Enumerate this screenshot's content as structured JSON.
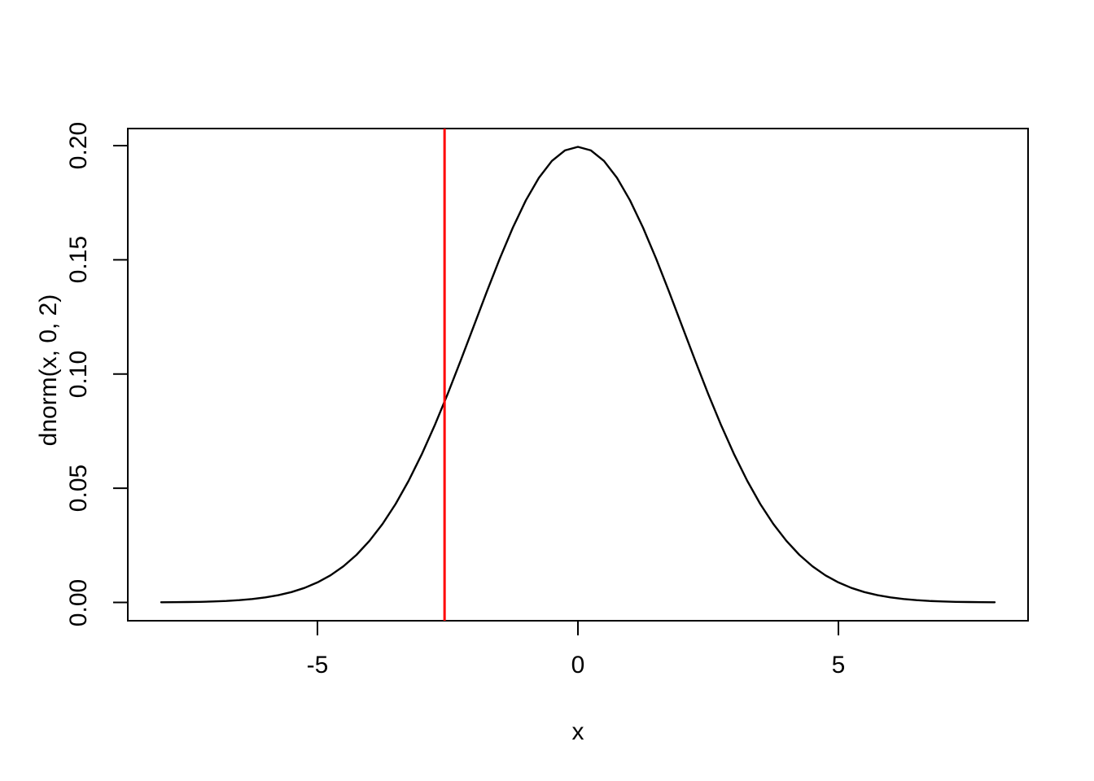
{
  "figure": {
    "background_color": "#FFFFFF",
    "foreground_color": "#000000"
  },
  "chart_data": {
    "type": "line",
    "title": "",
    "xlabel": "x",
    "ylabel": "dnorm(x, 0, 2)",
    "grid": false,
    "legend": false,
    "xlim": [
      -8.64,
      8.64
    ],
    "ylim": [
      -0.008,
      0.2075
    ],
    "x_ticks": [
      -5,
      0,
      5
    ],
    "x_tick_labels": [
      "-5",
      "0",
      "5"
    ],
    "y_ticks": [
      0.0,
      0.05,
      0.1,
      0.15,
      0.2
    ],
    "y_tick_labels": [
      "0.00",
      "0.05",
      "0.10",
      "0.15",
      "0.20"
    ],
    "series": [
      {
        "name": "dnorm(x, 0, 2)",
        "color": "#000000",
        "description": "Normal density curve, mean 0, sd 2, plotted for x from -8 to 8",
        "x": [
          -8,
          -7.75,
          -7.5,
          -7.25,
          -7,
          -6.75,
          -6.5,
          -6.25,
          -6,
          -5.75,
          -5.5,
          -5.25,
          -5,
          -4.75,
          -4.5,
          -4.25,
          -4,
          -3.75,
          -3.5,
          -3.25,
          -3,
          -2.75,
          -2.5,
          -2.25,
          -2,
          -1.75,
          -1.5,
          -1.25,
          -1,
          -0.75,
          -0.5,
          -0.25,
          0,
          0.25,
          0.5,
          0.75,
          1,
          1.25,
          1.5,
          1.75,
          2,
          2.25,
          2.5,
          2.75,
          3,
          3.25,
          3.5,
          3.75,
          4,
          4.25,
          4.5,
          4.75,
          5,
          5.25,
          5.5,
          5.75,
          6,
          6.25,
          6.5,
          6.75,
          7,
          7.25,
          7.5,
          7.75,
          8
        ],
        "y": [
          7e-05,
          0.00011,
          0.00018,
          0.00028,
          0.00044,
          0.00067,
          0.00102,
          0.00151,
          0.00222,
          0.0032,
          0.00455,
          0.00636,
          0.00876,
          0.01188,
          0.01587,
          0.02086,
          0.027,
          0.03439,
          0.04312,
          0.05326,
          0.06476,
          0.07751,
          0.09132,
          0.10594,
          0.12099,
          0.13602,
          0.15057,
          0.16408,
          0.17603,
          0.18593,
          0.19333,
          0.19792,
          0.19947,
          0.19792,
          0.19333,
          0.18593,
          0.17603,
          0.16408,
          0.15057,
          0.13602,
          0.12099,
          0.10594,
          0.09132,
          0.07751,
          0.06476,
          0.05326,
          0.04312,
          0.03439,
          0.027,
          0.02086,
          0.01587,
          0.01188,
          0.00876,
          0.00636,
          0.00455,
          0.0032,
          0.00222,
          0.00151,
          0.00102,
          0.00067,
          0.00044,
          0.00028,
          0.00018,
          0.00011,
          7e-05
        ]
      }
    ],
    "vline": {
      "x": -2.56,
      "color": "#FF0000"
    }
  }
}
